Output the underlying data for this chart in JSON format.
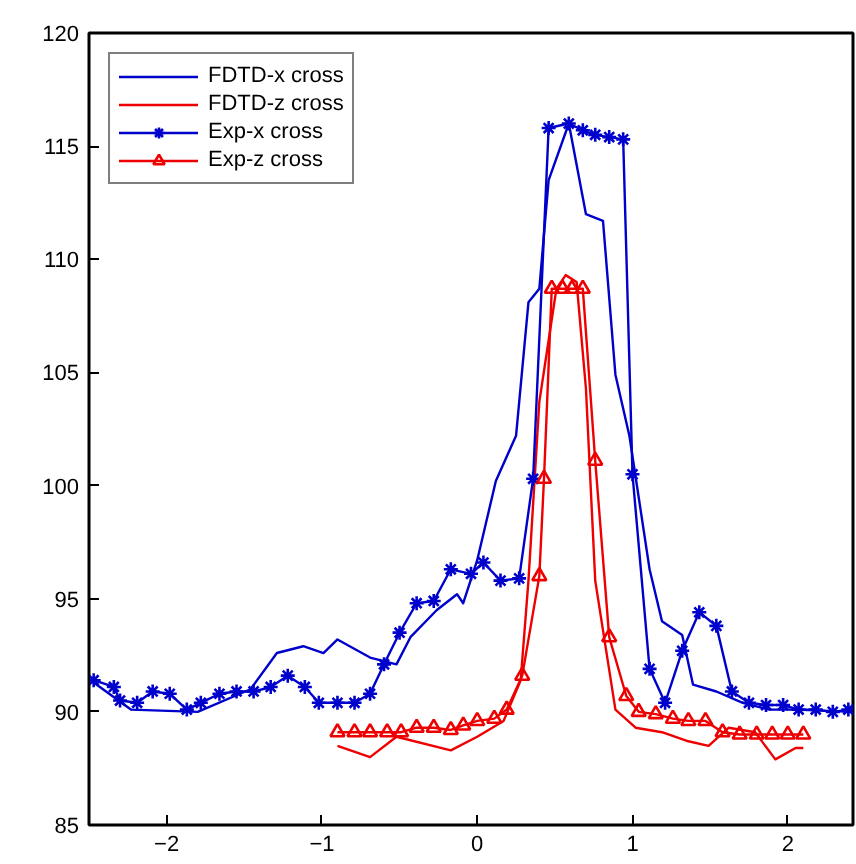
{
  "chart_data": {
    "type": "line",
    "xlim": [
      -2.5,
      2.42
    ],
    "ylim": [
      85,
      120
    ],
    "xticks": [
      -2,
      -1,
      0,
      1,
      2
    ],
    "yticks": [
      85,
      90,
      95,
      100,
      105,
      110,
      115,
      120
    ],
    "grid": false,
    "legend": "top left",
    "series": [
      {
        "name": "FDTD-x cross",
        "color": "#0000cc",
        "marker": "none",
        "x": [
          -2.47,
          -2.23,
          -1.8,
          -1.46,
          -1.29,
          -1.12,
          -0.99,
          -0.9,
          -0.69,
          -0.52,
          -0.43,
          -0.26,
          -0.13,
          -0.09,
          0,
          0.12,
          0.25,
          0.33,
          0.4,
          0.46,
          0.59,
          0.7,
          0.81,
          0.89,
          0.98,
          1.11,
          1.19,
          1.32,
          1.39,
          1.54,
          1.71,
          1.88,
          2.05,
          2.41
        ],
        "values": [
          91.3,
          90.1,
          90.0,
          91.0,
          92.6,
          92.9,
          92.6,
          93.2,
          92.4,
          92.1,
          93.3,
          94.5,
          95.2,
          94.8,
          96.7,
          100.2,
          102.2,
          108.1,
          108.7,
          113.5,
          116.0,
          112.0,
          111.7,
          104.9,
          102.2,
          96.3,
          94.0,
          93.4,
          91.2,
          90.9,
          90.4,
          90.1,
          90.1,
          90.0
        ]
      },
      {
        "name": "FDTD-z cross",
        "color": "#ee0000",
        "marker": "none",
        "x": [
          -0.9,
          -0.69,
          -0.52,
          -0.17,
          0,
          0.17,
          0.28,
          0.33,
          0.4,
          0.51,
          0.57,
          0.64,
          0.7,
          0.76,
          0.89,
          1.02,
          1.19,
          1.36,
          1.49,
          1.62,
          1.79,
          1.92,
          2.05,
          2.1
        ],
        "values": [
          88.5,
          88.0,
          88.9,
          88.3,
          88.9,
          89.6,
          91.4,
          95.8,
          103.7,
          108.7,
          109.3,
          109.0,
          104.3,
          95.8,
          90.1,
          89.3,
          89.1,
          88.7,
          88.5,
          89.3,
          89.1,
          87.9,
          88.4,
          88.4
        ]
      },
      {
        "name": "Exp-x cross",
        "color": "#0000cc",
        "marker": "cross",
        "x": [
          -2.47,
          -2.34,
          -2.3,
          -2.19,
          -2.09,
          -1.98,
          -1.87,
          -1.78,
          -1.66,
          -1.55,
          -1.44,
          -1.33,
          -1.22,
          -1.11,
          -1.02,
          -0.9,
          -0.79,
          -0.69,
          -0.6,
          -0.5,
          -0.39,
          -0.28,
          -0.17,
          -0.04,
          0.04,
          0.15,
          0.27,
          0.36,
          0.46,
          0.59,
          0.68,
          0.76,
          0.85,
          0.94,
          1.0,
          1.11,
          1.21,
          1.32,
          1.43,
          1.54,
          1.64,
          1.75,
          1.86,
          1.97,
          2.07,
          2.18,
          2.29,
          2.39
        ],
        "values": [
          91.4,
          91.1,
          90.5,
          90.4,
          90.9,
          90.8,
          90.1,
          90.4,
          90.8,
          90.9,
          90.9,
          91.1,
          91.6,
          91.1,
          90.4,
          90.4,
          90.4,
          90.8,
          92.1,
          93.5,
          94.8,
          94.9,
          96.3,
          96.1,
          96.6,
          95.8,
          95.9,
          100.3,
          115.8,
          116.0,
          115.7,
          115.5,
          115.4,
          115.3,
          100.5,
          91.9,
          90.4,
          92.7,
          94.4,
          93.8,
          90.9,
          90.4,
          90.3,
          90.3,
          90.1,
          90.1,
          90.0,
          90.1
        ]
      },
      {
        "name": "Exp-z cross",
        "color": "#ee0000",
        "marker": "triangle",
        "x": [
          -0.9,
          -0.79,
          -0.69,
          -0.58,
          -0.49,
          -0.39,
          -0.28,
          -0.17,
          -0.09,
          0,
          0.11,
          0.19,
          0.29,
          0.4,
          0.43,
          0.48,
          0.55,
          0.61,
          0.68,
          0.76,
          0.85,
          0.96,
          1.04,
          1.15,
          1.26,
          1.36,
          1.47,
          1.58,
          1.69,
          1.8,
          1.9,
          2.0,
          2.1
        ],
        "values": [
          89.1,
          89.1,
          89.1,
          89.1,
          89.1,
          89.3,
          89.3,
          89.2,
          89.4,
          89.6,
          89.7,
          90.1,
          91.6,
          96.0,
          100.3,
          108.7,
          108.7,
          108.7,
          108.7,
          101.1,
          93.3,
          90.7,
          90.0,
          89.9,
          89.7,
          89.6,
          89.6,
          89.1,
          89.0,
          89.0,
          89.0,
          89.0,
          89.0
        ]
      }
    ]
  }
}
